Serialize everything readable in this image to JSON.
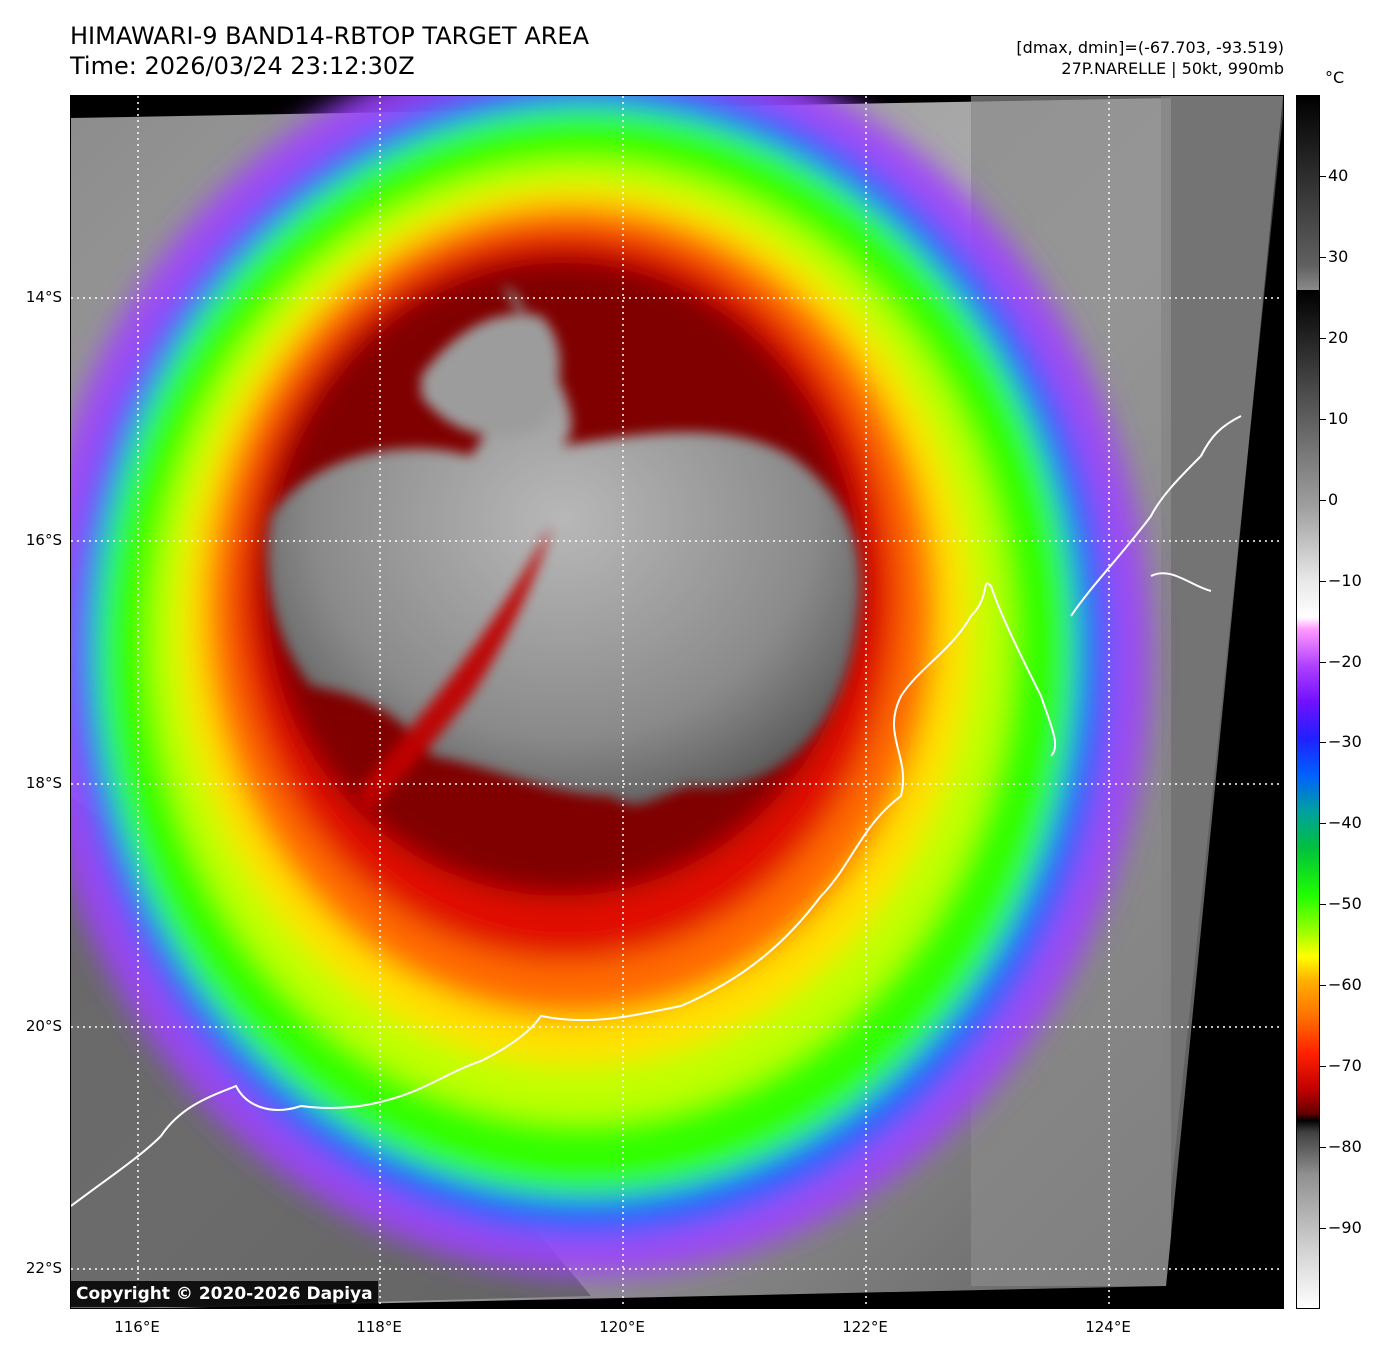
{
  "header": {
    "title": "HIMAWARI-9 BAND14-RBTOP TARGET AREA",
    "time": "Time: 2026/03/24 23:12:30Z",
    "range": "[dmax, dmin]=(-67.703, -93.519)",
    "storm": "27P.NARELLE | 50kt, 990mb"
  },
  "latitude_labels": [
    "14°S",
    "16°S",
    "18°S",
    "20°S",
    "22°S"
  ],
  "longitude_labels": [
    "116°E",
    "118°E",
    "120°E",
    "122°E",
    "124°E"
  ],
  "colorbar": {
    "unit": "°C",
    "ticks": [
      "40",
      "30",
      "20",
      "10",
      "0",
      "−10",
      "−20",
      "−30",
      "−40",
      "−50",
      "−60",
      "−70",
      "−80",
      "−90"
    ],
    "range": [
      50,
      -100
    ]
  },
  "copyright": "Copyright © 2020-2026 Dapiya",
  "colors": {
    "eye": "#9a9a9a",
    "core": "#b00000",
    "ring_orange": "#ff6a00",
    "ring_yellow": "#ffe000",
    "ring_green": "#30ff00",
    "ring_purple": "#a040ff",
    "outer": "#707070",
    "coast": "#ffffff"
  }
}
